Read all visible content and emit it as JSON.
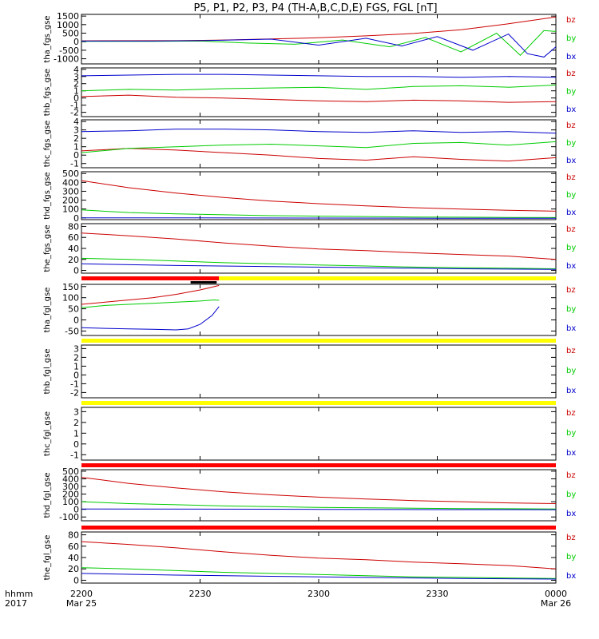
{
  "title": "P5, P1, P2, P3, P4 (TH-A,B,C,D,E) FGS, FGL [nT]",
  "colors": {
    "bx": "#0000cc",
    "by": "#00cc00",
    "bz": "#cc0000",
    "bar_ok": "#ffff00",
    "bar_bad": "#ff0000",
    "bar_other": "#000000"
  },
  "chart_data": {
    "type": "line",
    "x_axis": {
      "range_hours": [
        0,
        2
      ],
      "ticks": [
        {
          "value": 0,
          "label": "2200",
          "sublabel": "Mar 25"
        },
        {
          "value": 0.5,
          "label": "2230",
          "sublabel": ""
        },
        {
          "value": 1,
          "label": "2300",
          "sublabel": ""
        },
        {
          "value": 1.5,
          "label": "2330",
          "sublabel": ""
        },
        {
          "value": 2,
          "label": "0000",
          "sublabel": "Mar 26"
        }
      ],
      "left_labels": [
        "hhmm",
        "2017"
      ]
    },
    "panels": [
      {
        "ylabel": "tha_fgs_gse",
        "ylim": [
          -1300,
          1600
        ],
        "yticks": [
          -1000,
          -500,
          0,
          500,
          1000,
          1500
        ],
        "legend": [
          "bz",
          "by",
          "bx"
        ],
        "series": [
          {
            "name": "bz",
            "x": [
              0,
              0.4,
              0.6,
              0.8,
              1.0,
              1.2,
              1.4,
              1.6,
              1.8,
              2.0
            ],
            "y": [
              50,
              60,
              100,
              160,
              230,
              340,
              480,
              700,
              1050,
              1450
            ]
          },
          {
            "name": "by",
            "x": [
              0,
              0.3,
              0.5,
              0.7,
              0.9,
              1.1,
              1.3,
              1.45,
              1.6,
              1.75,
              1.85,
              1.95,
              2.0
            ],
            "y": [
              20,
              20,
              40,
              -80,
              -150,
              100,
              -300,
              250,
              -600,
              500,
              -800,
              650,
              600
            ]
          },
          {
            "name": "bx",
            "x": [
              0,
              0.3,
              0.5,
              0.8,
              1.0,
              1.2,
              1.35,
              1.5,
              1.65,
              1.8,
              1.88,
              1.95,
              2.0
            ],
            "y": [
              40,
              40,
              60,
              150,
              -200,
              200,
              -250,
              300,
              -500,
              450,
              -700,
              -900,
              -300
            ]
          }
        ]
      },
      {
        "ylabel": "thb_fgs_gse",
        "ylim": [
          -2.6,
          4.2
        ],
        "yticks": [
          -2,
          -1,
          0,
          1,
          2,
          3,
          4
        ],
        "legend": [
          "bz",
          "by",
          "bx"
        ],
        "series": [
          {
            "name": "bz",
            "x": [
              0,
              0.2,
              0.4,
              0.6,
              0.8,
              1.0,
              1.2,
              1.4,
              1.6,
              1.8,
              2.0
            ],
            "y": [
              0.2,
              0.4,
              0.1,
              0.0,
              -0.2,
              -0.4,
              -0.5,
              -0.3,
              -0.4,
              -0.6,
              -0.5
            ]
          },
          {
            "name": "by",
            "x": [
              0,
              0.2,
              0.4,
              0.6,
              0.8,
              1.0,
              1.2,
              1.4,
              1.6,
              1.8,
              2.0
            ],
            "y": [
              1.0,
              1.2,
              1.1,
              1.3,
              1.4,
              1.5,
              1.2,
              1.6,
              1.7,
              1.5,
              1.8
            ]
          },
          {
            "name": "bx",
            "x": [
              0,
              0.2,
              0.4,
              0.6,
              0.8,
              1.0,
              1.2,
              1.4,
              1.6,
              1.8,
              2.0
            ],
            "y": [
              3.1,
              3.2,
              3.3,
              3.3,
              3.2,
              3.1,
              3.0,
              3.0,
              2.9,
              3.0,
              2.9
            ]
          }
        ]
      },
      {
        "ylabel": "thc_fgs_gse",
        "ylim": [
          -1.5,
          4.2
        ],
        "yticks": [
          -1,
          0,
          1,
          2,
          3,
          4
        ],
        "legend": [
          "bz",
          "by",
          "bx"
        ],
        "series": [
          {
            "name": "bz",
            "x": [
              0,
              0.2,
              0.4,
              0.6,
              0.8,
              1.0,
              1.2,
              1.4,
              1.6,
              1.8,
              2.0
            ],
            "y": [
              0.5,
              0.8,
              0.6,
              0.3,
              0.0,
              -0.4,
              -0.6,
              -0.2,
              -0.5,
              -0.7,
              -0.3
            ]
          },
          {
            "name": "by",
            "x": [
              0,
              0.2,
              0.4,
              0.6,
              0.8,
              1.0,
              1.2,
              1.4,
              1.6,
              1.8,
              2.0
            ],
            "y": [
              0.3,
              0.8,
              1.0,
              1.2,
              1.3,
              1.1,
              0.9,
              1.4,
              1.5,
              1.2,
              1.6
            ]
          },
          {
            "name": "bx",
            "x": [
              0,
              0.2,
              0.4,
              0.6,
              0.8,
              1.0,
              1.2,
              1.4,
              1.6,
              1.8,
              2.0
            ],
            "y": [
              2.8,
              2.9,
              3.1,
              3.1,
              3.0,
              2.8,
              2.7,
              2.9,
              2.7,
              2.8,
              2.6
            ]
          }
        ]
      },
      {
        "ylabel": "thd_fgs_gse",
        "ylim": [
          -20,
          520
        ],
        "yticks": [
          0,
          100,
          200,
          300,
          400,
          500
        ],
        "legend": [
          "bz",
          "by",
          "bx"
        ],
        "series": [
          {
            "name": "bz",
            "x": [
              0,
              0.2,
              0.4,
              0.6,
              0.8,
              1.0,
              1.2,
              1.4,
              1.6,
              1.8,
              2.0
            ],
            "y": [
              420,
              340,
              280,
              230,
              190,
              160,
              135,
              115,
              100,
              85,
              75
            ]
          },
          {
            "name": "by",
            "x": [
              0,
              0.2,
              0.4,
              0.6,
              0.8,
              1.0,
              1.2,
              1.4,
              1.6,
              1.8,
              2.0
            ],
            "y": [
              90,
              60,
              45,
              35,
              25,
              20,
              15,
              10,
              8,
              5,
              3
            ]
          },
          {
            "name": "bx",
            "x": [
              0,
              0.5,
              1.0,
              1.5,
              2.0
            ],
            "y": [
              0,
              0,
              -2,
              -4,
              -5
            ]
          }
        ]
      },
      {
        "ylabel": "the_fgs_gse",
        "ylim": [
          -5,
          85
        ],
        "yticks": [
          0,
          20,
          40,
          60,
          80
        ],
        "legend": [
          "bz",
          "by",
          "bx"
        ],
        "series": [
          {
            "name": "bz",
            "x": [
              0,
              0.2,
              0.4,
              0.6,
              0.8,
              1.0,
              1.2,
              1.4,
              1.6,
              1.8,
              2.0
            ],
            "y": [
              68,
              63,
              57,
              50,
              44,
              39,
              36,
              32,
              29,
              26,
              20
            ]
          },
          {
            "name": "by",
            "x": [
              0,
              0.2,
              0.4,
              0.6,
              0.8,
              1.0,
              1.2,
              1.4,
              1.6,
              1.8,
              2.0
            ],
            "y": [
              22,
              20,
              17,
              14,
              12,
              10,
              8,
              6,
              5,
              4,
              3
            ]
          },
          {
            "name": "bx",
            "x": [
              0,
              0.4,
              0.8,
              1.2,
              1.6,
              2.0
            ],
            "y": [
              12,
              9,
              7,
              5,
              3,
              2
            ]
          }
        ]
      },
      {
        "ylabel": "tha_fgl_gse",
        "ylim": [
          -70,
          160
        ],
        "yticks": [
          -50,
          0,
          50,
          100,
          150
        ],
        "legend": [
          "bz",
          "by",
          "bx"
        ],
        "bars": [
          {
            "color": "bar_bad",
            "x0": 0,
            "x1": 0.58,
            "row": 0
          },
          {
            "color": "bar_ok",
            "x0": 0.58,
            "x1": 2.0,
            "row": 0
          },
          {
            "color": "bar_other",
            "x0": 0.46,
            "x1": 0.57,
            "row": 1
          }
        ],
        "series": [
          {
            "name": "bz",
            "x": [
              0,
              0.1,
              0.2,
              0.3,
              0.4,
              0.5,
              0.58
            ],
            "y": [
              70,
              80,
              90,
              100,
              115,
              135,
              155
            ]
          },
          {
            "name": "by",
            "x": [
              0,
              0.1,
              0.2,
              0.3,
              0.4,
              0.5,
              0.56,
              0.58
            ],
            "y": [
              55,
              65,
              70,
              75,
              80,
              85,
              90,
              88
            ]
          },
          {
            "name": "bx",
            "x": [
              0,
              0.1,
              0.2,
              0.3,
              0.4,
              0.45,
              0.5,
              0.55,
              0.58
            ],
            "y": [
              -35,
              -38,
              -40,
              -42,
              -45,
              -40,
              -20,
              20,
              60
            ]
          }
        ]
      },
      {
        "ylabel": "thb_fgl_gse",
        "ylim": [
          -2.6,
          3.4
        ],
        "yticks": [
          -2,
          -1,
          0,
          1,
          2,
          3
        ],
        "legend": [
          "bz",
          "by",
          "bx"
        ],
        "bars": [
          {
            "color": "bar_ok",
            "x0": 0,
            "x1": 2.0,
            "row": 0
          }
        ],
        "series": []
      },
      {
        "ylabel": "thc_fgl_gse",
        "ylim": [
          -1.5,
          3.4
        ],
        "yticks": [
          -1,
          0,
          1,
          2,
          3
        ],
        "legend": [
          "bz",
          "by",
          "bx"
        ],
        "bars": [
          {
            "color": "bar_ok",
            "x0": 0,
            "x1": 2.0,
            "row": 0
          }
        ],
        "series": []
      },
      {
        "ylabel": "thd_fgl_gse",
        "ylim": [
          -150,
          520
        ],
        "yticks": [
          -100,
          0,
          100,
          200,
          300,
          400,
          500
        ],
        "legend": [
          "bz",
          "by",
          "bx"
        ],
        "bars": [
          {
            "color": "bar_bad",
            "x0": 0,
            "x1": 2.0,
            "row": 0
          }
        ],
        "series": [
          {
            "name": "bz",
            "x": [
              0,
              0.2,
              0.4,
              0.6,
              0.8,
              1.0,
              1.2,
              1.4,
              1.6,
              1.8,
              2.0
            ],
            "y": [
              420,
              340,
              280,
              230,
              190,
              160,
              135,
              115,
              100,
              85,
              75
            ]
          },
          {
            "name": "by",
            "x": [
              0,
              0.2,
              0.4,
              0.6,
              0.8,
              1.0,
              1.2,
              1.4,
              1.6,
              1.8,
              2.0
            ],
            "y": [
              100,
              75,
              60,
              45,
              35,
              25,
              20,
              15,
              10,
              8,
              5
            ]
          },
          {
            "name": "bx",
            "x": [
              0,
              0.5,
              1.0,
              1.5,
              2.0
            ],
            "y": [
              5,
              3,
              0,
              -3,
              -5
            ]
          }
        ]
      },
      {
        "ylabel": "the_fgl_gse",
        "ylim": [
          -5,
          85
        ],
        "yticks": [
          0,
          20,
          40,
          60,
          80
        ],
        "legend": [
          "bz",
          "by",
          "bx"
        ],
        "bars": [
          {
            "color": "bar_bad",
            "x0": 0,
            "x1": 2.0,
            "row": 0
          }
        ],
        "series": [
          {
            "name": "bz",
            "x": [
              0,
              0.2,
              0.4,
              0.6,
              0.8,
              1.0,
              1.2,
              1.4,
              1.6,
              1.8,
              2.0
            ],
            "y": [
              68,
              63,
              57,
              50,
              44,
              39,
              36,
              32,
              29,
              26,
              20
            ]
          },
          {
            "name": "by",
            "x": [
              0,
              0.2,
              0.4,
              0.6,
              0.8,
              1.0,
              1.2,
              1.4,
              1.6,
              1.8,
              2.0
            ],
            "y": [
              22,
              20,
              17,
              14,
              12,
              10,
              8,
              6,
              5,
              4,
              3
            ]
          },
          {
            "name": "bx",
            "x": [
              0,
              0.4,
              0.8,
              1.2,
              1.6,
              2.0
            ],
            "y": [
              12,
              9,
              7,
              5,
              3,
              2
            ]
          }
        ]
      }
    ]
  }
}
